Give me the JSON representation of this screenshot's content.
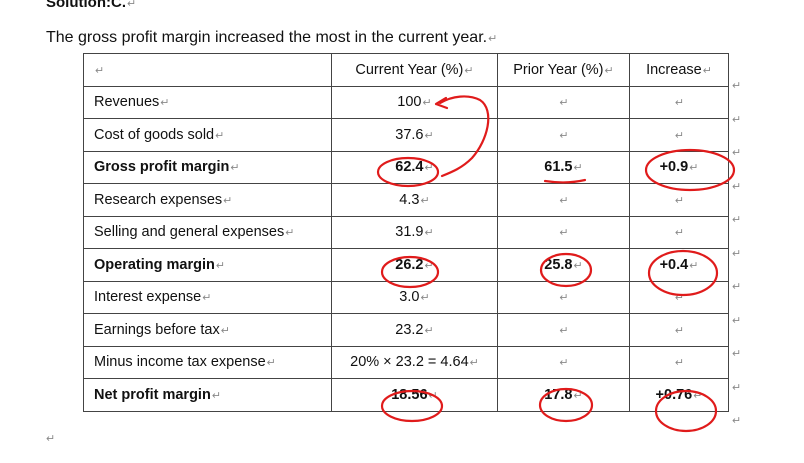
{
  "heading": "Solution:C.",
  "intro": "The gross profit margin increased the most in the current year.",
  "mark": "↵",
  "table": {
    "headers": [
      "",
      "Current Year (%)",
      "Prior Year (%)",
      "Increase"
    ],
    "rows": [
      [
        "Revenues",
        "100",
        "",
        ""
      ],
      [
        "Cost of goods sold",
        "37.6",
        "",
        ""
      ],
      [
        "Gross profit margin",
        "62.4",
        "61.5",
        "+0.9"
      ],
      [
        "Research expenses",
        "4.3",
        "",
        ""
      ],
      [
        "Selling and general expenses",
        "31.9",
        "",
        ""
      ],
      [
        "Operating margin",
        "26.2",
        "25.8",
        "+0.4"
      ],
      [
        "Interest expense",
        "3.0",
        "",
        ""
      ],
      [
        "Earnings before tax",
        "23.2",
        "",
        ""
      ],
      [
        "Minus income tax expense",
        "20% × 23.2 = 4.64",
        "",
        ""
      ],
      [
        "Net profit margin",
        "18.56",
        "17.8",
        "+0.76"
      ]
    ]
  },
  "annotation_color": "#e01b1b"
}
